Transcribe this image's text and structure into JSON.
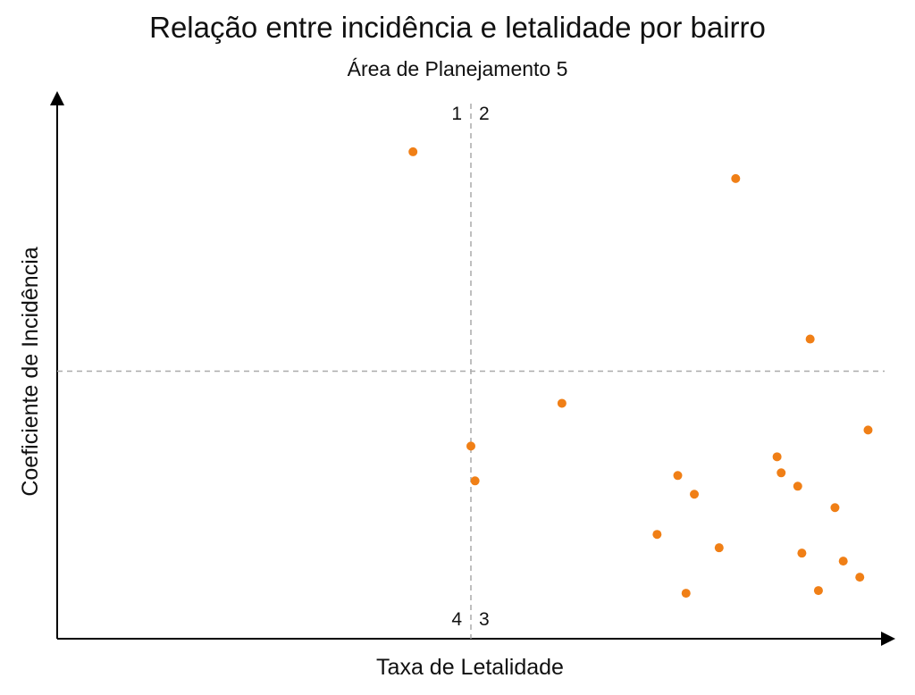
{
  "chart_data": {
    "type": "scatter",
    "title": "Relação entre incidência e letalidade por bairro",
    "subtitle": "Área de Planejamento 5",
    "xlabel": "Taxa de Letalidade",
    "ylabel": "Coeficiente de Incidência",
    "xlim": [
      0,
      100
    ],
    "ylim": [
      0,
      100
    ],
    "grid": false,
    "reference_lines": {
      "x": 50,
      "y": 50
    },
    "quadrant_labels": {
      "q1": "1",
      "q2": "2",
      "q3": "3",
      "q4": "4"
    },
    "point_color": "#f07f16",
    "points": [
      {
        "x": 43,
        "y": 91
      },
      {
        "x": 82,
        "y": 86
      },
      {
        "x": 91,
        "y": 56
      },
      {
        "x": 61,
        "y": 44
      },
      {
        "x": 98,
        "y": 39
      },
      {
        "x": 50,
        "y": 36
      },
      {
        "x": 50.5,
        "y": 29.5
      },
      {
        "x": 75,
        "y": 30.5
      },
      {
        "x": 77,
        "y": 27
      },
      {
        "x": 87,
        "y": 34
      },
      {
        "x": 87.5,
        "y": 31
      },
      {
        "x": 89.5,
        "y": 28.5
      },
      {
        "x": 94,
        "y": 24.5
      },
      {
        "x": 72.5,
        "y": 19.5
      },
      {
        "x": 80,
        "y": 17
      },
      {
        "x": 90,
        "y": 16
      },
      {
        "x": 95,
        "y": 14.5
      },
      {
        "x": 97,
        "y": 11.5
      },
      {
        "x": 92,
        "y": 9
      },
      {
        "x": 76,
        "y": 8.5
      }
    ]
  }
}
